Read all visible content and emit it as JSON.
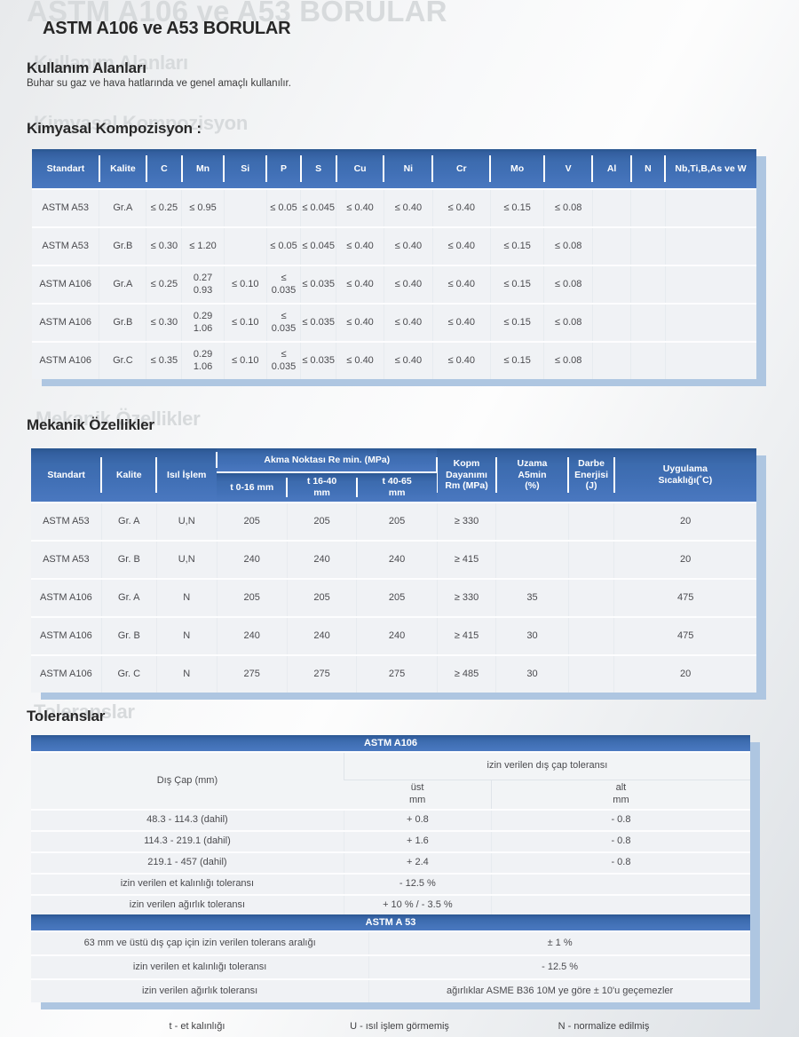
{
  "colors": {
    "header_blue": "#3c6db3",
    "header_blue_dark": "#29568f",
    "shadow_blue": "#aec6e1",
    "table_bg": "#f0f2f5",
    "ghost_gray": "#d7dadc"
  },
  "header": {
    "title": "ASTM A106 ve A53 BORULAR",
    "ghost_title": "ASTM A106 ve A53 BORULAR"
  },
  "usage": {
    "heading": "Kullanım Alanları",
    "ghost": "Kullanım Alanları",
    "description": "Buhar su gaz ve hava hatlarında ve genel amaçlı kullanılır."
  },
  "chemical": {
    "heading": "Kimyasal Kompozisyon :",
    "ghost": "Kimyasal Kompozisyon",
    "columns": [
      "Standart",
      "Kalite",
      "C",
      "Mn",
      "Si",
      "P",
      "S",
      "Cu",
      "Ni",
      "Cr",
      "Mo",
      "V",
      "Al",
      "N",
      "Nb,Ti,B,As ve W"
    ],
    "rows": [
      [
        "ASTM A53",
        "Gr.A",
        "≤ 0.25",
        "≤ 0.95",
        "",
        "≤ 0.05",
        "≤ 0.045",
        "≤ 0.40",
        "≤ 0.40",
        "≤ 0.40",
        "≤ 0.15",
        "≤ 0.08",
        "",
        "",
        ""
      ],
      [
        "ASTM A53",
        "Gr.B",
        "≤ 0.30",
        "≤ 1.20",
        "",
        "≤ 0.05",
        "≤ 0.045",
        "≤ 0.40",
        "≤ 0.40",
        "≤ 0.40",
        "≤ 0.15",
        "≤ 0.08",
        "",
        "",
        ""
      ],
      [
        "ASTM A106",
        "Gr.A",
        "≤ 0.25",
        "0.27\n0.93",
        "≤ 0.10",
        "≤ 0.035",
        "≤ 0.035",
        "≤ 0.40",
        "≤ 0.40",
        "≤ 0.40",
        "≤ 0.15",
        "≤ 0.08",
        "",
        "",
        ""
      ],
      [
        "ASTM A106",
        "Gr.B",
        "≤ 0.30",
        "0.29\n1.06",
        "≤ 0.10",
        "≤ 0.035",
        "≤ 0.035",
        "≤ 0.40",
        "≤ 0.40",
        "≤ 0.40",
        "≤ 0.15",
        "≤ 0.08",
        "",
        "",
        ""
      ],
      [
        "ASTM A106",
        "Gr.C",
        "≤ 0.35",
        "0.29\n1.06",
        "≤ 0.10",
        "≤ 0.035",
        "≤ 0.035",
        "≤ 0.40",
        "≤ 0.40",
        "≤ 0.40",
        "≤ 0.15",
        "≤ 0.08",
        "",
        "",
        ""
      ]
    ]
  },
  "mechanical": {
    "heading": "Mekanik Özellikler",
    "ghost": "Mekanik Özellikler",
    "header": {
      "standart": "Standart",
      "kalite": "Kalite",
      "isil_islem": "Isıl İşlem",
      "akma_group": "Akma Noktası Re min. (MPa)",
      "akma_cols": [
        "t 0-16 mm",
        "t 16-40\nmm",
        "t 40-65\nmm"
      ],
      "kopma": "Kopm\nDayanımı\nRm (MPa)",
      "uzama": "Uzama\nA5min\n(%)",
      "darbe": "Darbe\nEnerjisi\n(J)",
      "uygulama": "Uygulama\nSıcaklığı(˚C)"
    },
    "rows": [
      [
        "ASTM A53",
        "Gr. A",
        "U,N",
        "205",
        "205",
        "205",
        "≥ 330",
        "",
        "",
        "20"
      ],
      [
        "ASTM A53",
        "Gr. B",
        "U,N",
        "240",
        "240",
        "240",
        "≥ 415",
        "",
        "",
        "20"
      ],
      [
        "ASTM A106",
        "Gr. A",
        "N",
        "205",
        "205",
        "205",
        "≥ 330",
        "35",
        "",
        "475"
      ],
      [
        "ASTM A106",
        "Gr. B",
        "N",
        "240",
        "240",
        "240",
        "≥ 415",
        "30",
        "",
        "475"
      ],
      [
        "ASTM A106",
        "Gr. C",
        "N",
        "275",
        "275",
        "275",
        "≥ 485",
        "30",
        "",
        "20"
      ]
    ]
  },
  "tolerances": {
    "heading": "Toleranslar",
    "ghost": "Toleranslar",
    "a106": {
      "bar_title": "ASTM A106",
      "dis_cap_label": "Dış Çap (mm)",
      "group_label": "izin verilen dış çap toleransı",
      "ust_label": "üst\nmm",
      "alt_label": "alt\nmm",
      "rows": [
        [
          "48.3 - 114.3 (dahil)",
          "+ 0.8",
          "- 0.8"
        ],
        [
          "114.3 - 219.1 (dahil)",
          "+ 1.6",
          "- 0.8"
        ],
        [
          "219.1 - 457  (dahil)",
          "+ 2.4",
          "- 0.8"
        ],
        [
          "izin verilen et kalınlığı toleransı",
          "- 12.5 %",
          ""
        ],
        [
          "izin verilen ağırlık toleransı",
          "+ 10 % / - 3.5 %",
          ""
        ]
      ]
    },
    "a53": {
      "bar_title": "ASTM A 53",
      "rows": [
        [
          "63 mm ve üstü dış çap için izin verilen tolerans aralığı",
          "± 1 %"
        ],
        [
          "izin verilen et kalınlığı toleransı",
          "- 12.5 %"
        ],
        [
          "izin verilen ağırlık toleransı",
          "ağırlıklar ASME B36 10M ye göre ± 10'u geçemezler"
        ]
      ]
    }
  },
  "footnotes": [
    "t - et kalınlığı",
    "U - ısıl işlem görmemiş",
    "N - normalize edilmiş"
  ]
}
